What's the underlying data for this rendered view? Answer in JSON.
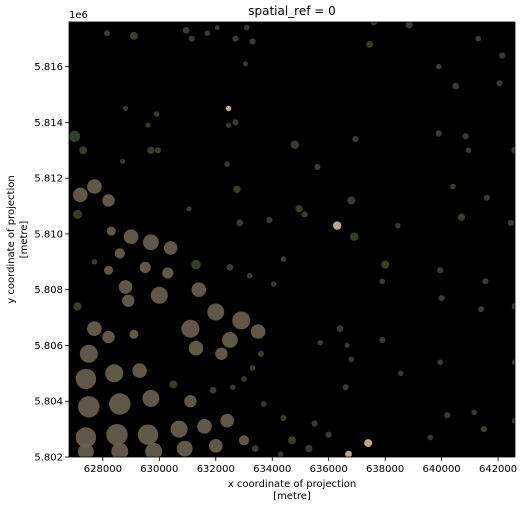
{
  "chart_data": {
    "type": "heatmap",
    "title": "spatial_ref = 0",
    "offset_text": "1e6",
    "xlabel_line1": "x coordinate of projection",
    "xlabel_line2": "[metre]",
    "ylabel_line1": "y coordinate of projection",
    "ylabel_line2": "[metre]",
    "xlim": [
      626800,
      642600
    ],
    "ylim": [
      5.802,
      5.8176
    ],
    "xticks": [
      628000,
      630000,
      632000,
      634000,
      636000,
      638000,
      640000,
      642000
    ],
    "xtick_labels": [
      "628000",
      "630000",
      "632000",
      "634000",
      "636000",
      "638000",
      "640000",
      "642000"
    ],
    "yticks": [
      5.802,
      5.804,
      5.806,
      5.808,
      5.81,
      5.812,
      5.814,
      5.816
    ],
    "ytick_labels": [
      "5.802",
      "5.804",
      "5.806",
      "5.808",
      "5.810",
      "5.812",
      "5.814",
      "5.816"
    ],
    "background_color": "#000000",
    "vegetation_color": "#3c4a34",
    "urban_color": "#6b6150",
    "sand_color": "#d9c4a8",
    "patches": [
      {
        "x": 628150,
        "y": 5.8172,
        "r": 110,
        "kind": "veg"
      },
      {
        "x": 629100,
        "y": 5.8171,
        "r": 140,
        "kind": "veg"
      },
      {
        "x": 630950,
        "y": 5.8173,
        "r": 120,
        "kind": "veg"
      },
      {
        "x": 631700,
        "y": 5.8172,
        "r": 100,
        "kind": "veg"
      },
      {
        "x": 632050,
        "y": 5.8174,
        "r": 90,
        "kind": "veg"
      },
      {
        "x": 631150,
        "y": 5.817,
        "r": 110,
        "kind": "veg"
      },
      {
        "x": 633100,
        "y": 5.8174,
        "r": 100,
        "kind": "veg"
      },
      {
        "x": 633300,
        "y": 5.8169,
        "r": 110,
        "kind": "veg"
      },
      {
        "x": 632700,
        "y": 5.817,
        "r": 110,
        "kind": "veg"
      },
      {
        "x": 634600,
        "y": 5.8177,
        "r": 120,
        "kind": "veg"
      },
      {
        "x": 636050,
        "y": 5.8177,
        "r": 100,
        "kind": "veg"
      },
      {
        "x": 637600,
        "y": 5.8176,
        "r": 120,
        "kind": "veg"
      },
      {
        "x": 638850,
        "y": 5.8175,
        "r": 130,
        "kind": "veg"
      },
      {
        "x": 637450,
        "y": 5.8168,
        "r": 120,
        "kind": "veg"
      },
      {
        "x": 633050,
        "y": 5.8161,
        "r": 90,
        "kind": "veg"
      },
      {
        "x": 639900,
        "y": 5.816,
        "r": 100,
        "kind": "veg"
      },
      {
        "x": 641300,
        "y": 5.817,
        "r": 100,
        "kind": "veg"
      },
      {
        "x": 642150,
        "y": 5.8164,
        "r": 110,
        "kind": "veg"
      },
      {
        "x": 640500,
        "y": 5.8153,
        "r": 120,
        "kind": "veg"
      },
      {
        "x": 642050,
        "y": 5.8154,
        "r": 110,
        "kind": "veg"
      },
      {
        "x": 628800,
        "y": 5.8145,
        "r": 90,
        "kind": "veg"
      },
      {
        "x": 629900,
        "y": 5.8143,
        "r": 100,
        "kind": "veg"
      },
      {
        "x": 629600,
        "y": 5.8139,
        "r": 90,
        "kind": "veg"
      },
      {
        "x": 632450,
        "y": 5.8145,
        "r": 100,
        "kind": "sand"
      },
      {
        "x": 632700,
        "y": 5.814,
        "r": 110,
        "kind": "veg"
      },
      {
        "x": 632450,
        "y": 5.8139,
        "r": 90,
        "kind": "veg"
      },
      {
        "x": 627000,
        "y": 5.8135,
        "r": 200,
        "kind": "veg"
      },
      {
        "x": 627300,
        "y": 5.813,
        "r": 140,
        "kind": "veg"
      },
      {
        "x": 629700,
        "y": 5.813,
        "r": 130,
        "kind": "veg"
      },
      {
        "x": 629950,
        "y": 5.813,
        "r": 110,
        "kind": "veg"
      },
      {
        "x": 628700,
        "y": 5.8126,
        "r": 90,
        "kind": "veg"
      },
      {
        "x": 634800,
        "y": 5.8132,
        "r": 150,
        "kind": "veg"
      },
      {
        "x": 636950,
        "y": 5.8134,
        "r": 110,
        "kind": "veg"
      },
      {
        "x": 639900,
        "y": 5.8136,
        "r": 110,
        "kind": "veg"
      },
      {
        "x": 640850,
        "y": 5.8135,
        "r": 110,
        "kind": "veg"
      },
      {
        "x": 640950,
        "y": 5.813,
        "r": 100,
        "kind": "veg"
      },
      {
        "x": 642600,
        "y": 5.813,
        "r": 130,
        "kind": "veg"
      },
      {
        "x": 632400,
        "y": 5.8125,
        "r": 100,
        "kind": "veg"
      },
      {
        "x": 635600,
        "y": 5.8124,
        "r": 110,
        "kind": "veg"
      },
      {
        "x": 632750,
        "y": 5.8116,
        "r": 130,
        "kind": "veg"
      },
      {
        "x": 631050,
        "y": 5.8109,
        "r": 90,
        "kind": "veg"
      },
      {
        "x": 627200,
        "y": 5.8114,
        "r": 260,
        "kind": "urban"
      },
      {
        "x": 627700,
        "y": 5.8117,
        "r": 260,
        "kind": "urban"
      },
      {
        "x": 628200,
        "y": 5.8112,
        "r": 220,
        "kind": "urban"
      },
      {
        "x": 627100,
        "y": 5.8107,
        "r": 160,
        "kind": "veg"
      },
      {
        "x": 640400,
        "y": 5.8117,
        "r": 100,
        "kind": "veg"
      },
      {
        "x": 641600,
        "y": 5.8113,
        "r": 110,
        "kind": "veg"
      },
      {
        "x": 636800,
        "y": 5.8112,
        "r": 140,
        "kind": "veg"
      },
      {
        "x": 634950,
        "y": 5.8109,
        "r": 130,
        "kind": "veg"
      },
      {
        "x": 635150,
        "y": 5.8107,
        "r": 110,
        "kind": "veg"
      },
      {
        "x": 640700,
        "y": 5.8106,
        "r": 130,
        "kind": "veg"
      },
      {
        "x": 642450,
        "y": 5.8104,
        "r": 110,
        "kind": "veg"
      },
      {
        "x": 633900,
        "y": 5.8105,
        "r": 110,
        "kind": "veg"
      },
      {
        "x": 632850,
        "y": 5.8104,
        "r": 120,
        "kind": "veg"
      },
      {
        "x": 636300,
        "y": 5.8103,
        "r": 150,
        "kind": "sand"
      },
      {
        "x": 638450,
        "y": 5.8103,
        "r": 100,
        "kind": "veg"
      },
      {
        "x": 636900,
        "y": 5.8099,
        "r": 150,
        "kind": "veg"
      },
      {
        "x": 628300,
        "y": 5.8101,
        "r": 160,
        "kind": "urban"
      },
      {
        "x": 629000,
        "y": 5.8099,
        "r": 260,
        "kind": "urban"
      },
      {
        "x": 629700,
        "y": 5.8097,
        "r": 280,
        "kind": "urban"
      },
      {
        "x": 630400,
        "y": 5.8095,
        "r": 240,
        "kind": "urban"
      },
      {
        "x": 628600,
        "y": 5.8093,
        "r": 180,
        "kind": "urban"
      },
      {
        "x": 627700,
        "y": 5.809,
        "r": 100,
        "kind": "veg"
      },
      {
        "x": 631300,
        "y": 5.8089,
        "r": 170,
        "kind": "veg"
      },
      {
        "x": 632500,
        "y": 5.8088,
        "r": 120,
        "kind": "veg"
      },
      {
        "x": 634400,
        "y": 5.8091,
        "r": 100,
        "kind": "veg"
      },
      {
        "x": 638000,
        "y": 5.8089,
        "r": 140,
        "kind": "veg"
      },
      {
        "x": 639950,
        "y": 5.8087,
        "r": 110,
        "kind": "veg"
      },
      {
        "x": 630300,
        "y": 5.8086,
        "r": 200,
        "kind": "urban"
      },
      {
        "x": 629500,
        "y": 5.8088,
        "r": 200,
        "kind": "urban"
      },
      {
        "x": 628200,
        "y": 5.8087,
        "r": 160,
        "kind": "urban"
      },
      {
        "x": 633200,
        "y": 5.8085,
        "r": 100,
        "kind": "veg"
      },
      {
        "x": 634050,
        "y": 5.8082,
        "r": 100,
        "kind": "veg"
      },
      {
        "x": 637900,
        "y": 5.8083,
        "r": 100,
        "kind": "veg"
      },
      {
        "x": 641550,
        "y": 5.8083,
        "r": 110,
        "kind": "veg"
      },
      {
        "x": 630000,
        "y": 5.8078,
        "r": 300,
        "kind": "urban"
      },
      {
        "x": 628800,
        "y": 5.8081,
        "r": 240,
        "kind": "urban"
      },
      {
        "x": 628900,
        "y": 5.8076,
        "r": 220,
        "kind": "urban"
      },
      {
        "x": 631400,
        "y": 5.808,
        "r": 260,
        "kind": "urban"
      },
      {
        "x": 632000,
        "y": 5.8072,
        "r": 300,
        "kind": "urban"
      },
      {
        "x": 631100,
        "y": 5.8066,
        "r": 320,
        "kind": "urban"
      },
      {
        "x": 632900,
        "y": 5.8069,
        "r": 320,
        "kind": "urban"
      },
      {
        "x": 633500,
        "y": 5.8065,
        "r": 260,
        "kind": "urban"
      },
      {
        "x": 632500,
        "y": 5.8062,
        "r": 280,
        "kind": "urban"
      },
      {
        "x": 631300,
        "y": 5.8059,
        "r": 260,
        "kind": "urban"
      },
      {
        "x": 632200,
        "y": 5.8057,
        "r": 220,
        "kind": "urban"
      },
      {
        "x": 627100,
        "y": 5.8074,
        "r": 150,
        "kind": "veg"
      },
      {
        "x": 636400,
        "y": 5.8066,
        "r": 120,
        "kind": "veg"
      },
      {
        "x": 635700,
        "y": 5.8061,
        "r": 100,
        "kind": "veg"
      },
      {
        "x": 636650,
        "y": 5.806,
        "r": 90,
        "kind": "veg"
      },
      {
        "x": 637900,
        "y": 5.8062,
        "r": 110,
        "kind": "veg"
      },
      {
        "x": 640000,
        "y": 5.8077,
        "r": 110,
        "kind": "veg"
      },
      {
        "x": 641400,
        "y": 5.8073,
        "r": 110,
        "kind": "veg"
      },
      {
        "x": 642600,
        "y": 5.8074,
        "r": 120,
        "kind": "veg"
      },
      {
        "x": 627700,
        "y": 5.8066,
        "r": 260,
        "kind": "urban"
      },
      {
        "x": 628200,
        "y": 5.8063,
        "r": 220,
        "kind": "urban"
      },
      {
        "x": 629100,
        "y": 5.8064,
        "r": 160,
        "kind": "urban"
      },
      {
        "x": 627500,
        "y": 5.8057,
        "r": 320,
        "kind": "urban"
      },
      {
        "x": 627400,
        "y": 5.8048,
        "r": 360,
        "kind": "urban"
      },
      {
        "x": 628400,
        "y": 5.805,
        "r": 320,
        "kind": "urban"
      },
      {
        "x": 629300,
        "y": 5.8051,
        "r": 260,
        "kind": "urban"
      },
      {
        "x": 627500,
        "y": 5.8038,
        "r": 380,
        "kind": "urban"
      },
      {
        "x": 628600,
        "y": 5.8039,
        "r": 380,
        "kind": "urban"
      },
      {
        "x": 629700,
        "y": 5.8041,
        "r": 300,
        "kind": "urban"
      },
      {
        "x": 627400,
        "y": 5.8027,
        "r": 360,
        "kind": "urban"
      },
      {
        "x": 628500,
        "y": 5.8028,
        "r": 380,
        "kind": "urban"
      },
      {
        "x": 629600,
        "y": 5.8028,
        "r": 360,
        "kind": "urban"
      },
      {
        "x": 630700,
        "y": 5.803,
        "r": 300,
        "kind": "urban"
      },
      {
        "x": 631600,
        "y": 5.8031,
        "r": 260,
        "kind": "urban"
      },
      {
        "x": 632400,
        "y": 5.8033,
        "r": 240,
        "kind": "urban"
      },
      {
        "x": 631100,
        "y": 5.804,
        "r": 220,
        "kind": "urban"
      },
      {
        "x": 627400,
        "y": 5.8022,
        "r": 280,
        "kind": "urban"
      },
      {
        "x": 628600,
        "y": 5.8022,
        "r": 300,
        "kind": "urban"
      },
      {
        "x": 629800,
        "y": 5.8022,
        "r": 300,
        "kind": "urban"
      },
      {
        "x": 630900,
        "y": 5.8023,
        "r": 280,
        "kind": "urban"
      },
      {
        "x": 632000,
        "y": 5.8024,
        "r": 240,
        "kind": "urban"
      },
      {
        "x": 633000,
        "y": 5.8026,
        "r": 180,
        "kind": "urban"
      },
      {
        "x": 630500,
        "y": 5.8046,
        "r": 140,
        "kind": "veg"
      },
      {
        "x": 631900,
        "y": 5.8044,
        "r": 120,
        "kind": "veg"
      },
      {
        "x": 632600,
        "y": 5.8045,
        "r": 100,
        "kind": "veg"
      },
      {
        "x": 633000,
        "y": 5.8048,
        "r": 100,
        "kind": "veg"
      },
      {
        "x": 633300,
        "y": 5.8052,
        "r": 100,
        "kind": "veg"
      },
      {
        "x": 633600,
        "y": 5.8057,
        "r": 110,
        "kind": "veg"
      },
      {
        "x": 636800,
        "y": 5.8055,
        "r": 100,
        "kind": "veg"
      },
      {
        "x": 638550,
        "y": 5.805,
        "r": 100,
        "kind": "veg"
      },
      {
        "x": 639950,
        "y": 5.8054,
        "r": 100,
        "kind": "veg"
      },
      {
        "x": 642600,
        "y": 5.8054,
        "r": 110,
        "kind": "veg"
      },
      {
        "x": 636600,
        "y": 5.8045,
        "r": 110,
        "kind": "veg"
      },
      {
        "x": 633700,
        "y": 5.8039,
        "r": 100,
        "kind": "veg"
      },
      {
        "x": 634400,
        "y": 5.8034,
        "r": 110,
        "kind": "veg"
      },
      {
        "x": 635500,
        "y": 5.8032,
        "r": 110,
        "kind": "veg"
      },
      {
        "x": 636000,
        "y": 5.8028,
        "r": 110,
        "kind": "veg"
      },
      {
        "x": 634700,
        "y": 5.8026,
        "r": 140,
        "kind": "veg"
      },
      {
        "x": 633400,
        "y": 5.8023,
        "r": 120,
        "kind": "veg"
      },
      {
        "x": 635300,
        "y": 5.8023,
        "r": 130,
        "kind": "veg"
      },
      {
        "x": 636700,
        "y": 5.8021,
        "r": 120,
        "kind": "sand"
      },
      {
        "x": 637400,
        "y": 5.8025,
        "r": 140,
        "kind": "sand"
      },
      {
        "x": 640200,
        "y": 5.8035,
        "r": 110,
        "kind": "veg"
      },
      {
        "x": 641150,
        "y": 5.8036,
        "r": 100,
        "kind": "veg"
      },
      {
        "x": 641500,
        "y": 5.803,
        "r": 110,
        "kind": "veg"
      },
      {
        "x": 642600,
        "y": 5.8033,
        "r": 110,
        "kind": "veg"
      },
      {
        "x": 639600,
        "y": 5.8027,
        "r": 100,
        "kind": "veg"
      },
      {
        "x": 634300,
        "y": 5.8021,
        "r": 100,
        "kind": "veg"
      }
    ]
  }
}
